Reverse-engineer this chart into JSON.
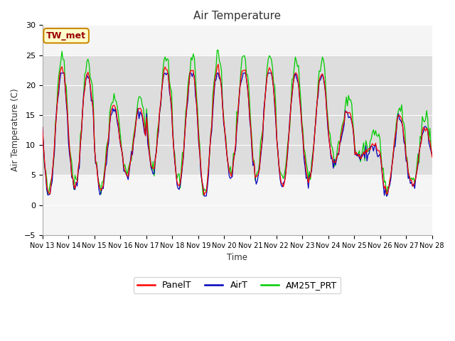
{
  "title": "Air Temperature",
  "ylabel": "Air Temperature (C)",
  "xlabel": "Time",
  "ylim": [
    -5,
    30
  ],
  "yticks": [
    -5,
    0,
    5,
    10,
    15,
    20,
    25,
    30
  ],
  "legend_labels": [
    "PanelT",
    "AirT",
    "AM25T_PRT"
  ],
  "legend_colors": [
    "#ff0000",
    "#0000bb",
    "#00cc00"
  ],
  "annotation_text": "TW_met",
  "annotation_bg": "#ffffcc",
  "annotation_border": "#cc8800",
  "shaded_region": [
    5,
    25
  ],
  "shaded_color": "#dddddd",
  "plot_bg": "#f5f5f5",
  "x_tick_days": [
    13,
    14,
    15,
    16,
    17,
    18,
    19,
    20,
    21,
    22,
    23,
    24,
    25,
    26,
    27,
    28
  ],
  "figsize": [
    6.4,
    4.8
  ],
  "dpi": 100
}
